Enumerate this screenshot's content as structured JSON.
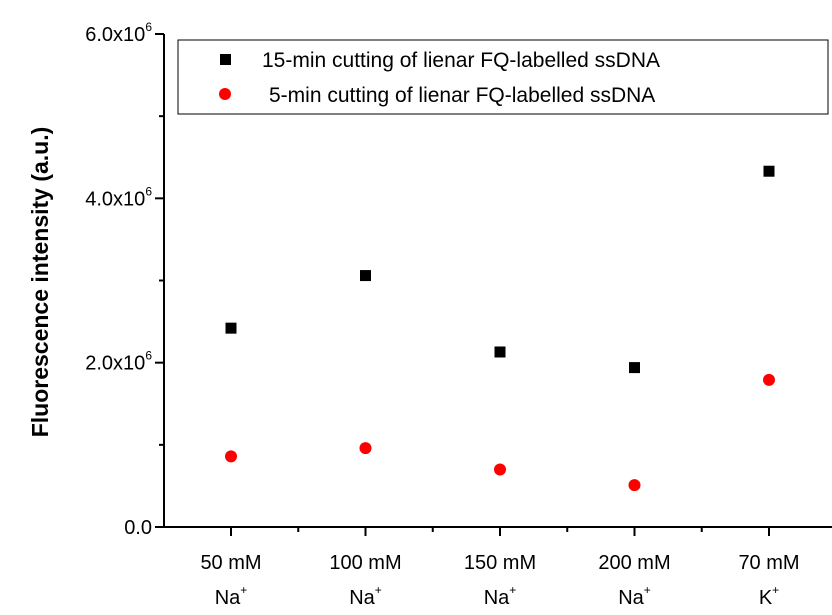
{
  "chart_data": {
    "type": "scatter",
    "title": "",
    "xlabel": "",
    "ylabel": "Fluorescence intensity (a.u.)",
    "categories": [
      {
        "line1": "50 mM",
        "ion": "Na",
        "charge": "+"
      },
      {
        "line1": "100 mM",
        "ion": "Na",
        "charge": "+"
      },
      {
        "line1": "150 mM",
        "ion": "Na",
        "charge": "+"
      },
      {
        "line1": "200 mM",
        "ion": "Na",
        "charge": "+"
      },
      {
        "line1": "70 mM",
        "ion": "K",
        "charge": "+"
      }
    ],
    "ylim": [
      0,
      6000000
    ],
    "yticks": [
      {
        "value": 0,
        "mantissa": "0.0",
        "exp": ""
      },
      {
        "value": 2000000,
        "mantissa": "2.0x10",
        "exp": "6"
      },
      {
        "value": 4000000,
        "mantissa": "4.0x10",
        "exp": "6"
      },
      {
        "value": 6000000,
        "mantissa": "6.0x10",
        "exp": "6"
      }
    ],
    "grid": false,
    "legend_position": "top",
    "series": [
      {
        "name": "15-min cutting of lienar FQ-labelled ssDNA",
        "marker": "square",
        "color": "#000000",
        "values": [
          2420000,
          3060000,
          2130000,
          1940000,
          4330000
        ]
      },
      {
        "name": "5-min cutting of lienar FQ-labelled ssDNA",
        "marker": "circle",
        "color": "#ff0000",
        "values": [
          860000,
          960000,
          700000,
          510000,
          1790000
        ]
      }
    ]
  }
}
